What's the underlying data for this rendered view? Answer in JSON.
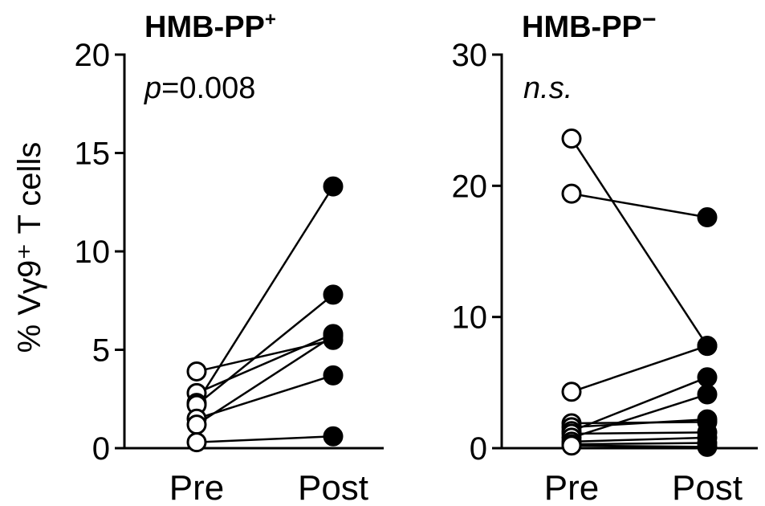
{
  "ylabel": "% Vγ9⁺ T cells",
  "chart_data": [
    {
      "type": "paired-dot",
      "title": "HMB-PP",
      "title_sup": "+",
      "annotation_italic": "p",
      "annotation_rest": "=0.008",
      "categories": [
        "Pre",
        "Post"
      ],
      "ylim": [
        0,
        20
      ],
      "yticks": [
        "0",
        "5",
        "10",
        "15",
        "20"
      ],
      "pairs": [
        {
          "pre": 3.9,
          "post": 5.5
        },
        {
          "pre": 2.8,
          "post": 5.8
        },
        {
          "pre": 2.3,
          "post": 13.3
        },
        {
          "pre": 2.2,
          "post": 7.8
        },
        {
          "pre": 1.5,
          "post": 3.7
        },
        {
          "pre": 1.2,
          "post": 5.7
        },
        {
          "pre": 0.3,
          "post": 0.6
        }
      ],
      "pre_style": "open",
      "post_style": "filled"
    },
    {
      "type": "paired-dot",
      "title": "HMB-PP",
      "title_sup": "−",
      "annotation_italic": "n.s.",
      "annotation_rest": "",
      "categories": [
        "Pre",
        "Post"
      ],
      "ylim": [
        0,
        30
      ],
      "yticks": [
        "0",
        "10",
        "20",
        "30"
      ],
      "pairs": [
        {
          "pre": 23.6,
          "post": 7.8
        },
        {
          "pre": 19.4,
          "post": 17.6
        },
        {
          "pre": 4.3,
          "post": 7.8
        },
        {
          "pre": 1.9,
          "post": 2.0
        },
        {
          "pre": 1.6,
          "post": 2.2
        },
        {
          "pre": 1.3,
          "post": 5.4
        },
        {
          "pre": 1.1,
          "post": 1.2
        },
        {
          "pre": 0.8,
          "post": 4.1
        },
        {
          "pre": 0.5,
          "post": 0.8
        },
        {
          "pre": 0.3,
          "post": 0.4
        },
        {
          "pre": 0.2,
          "post": 0.1
        }
      ],
      "pre_style": "open",
      "post_style": "filled"
    }
  ]
}
